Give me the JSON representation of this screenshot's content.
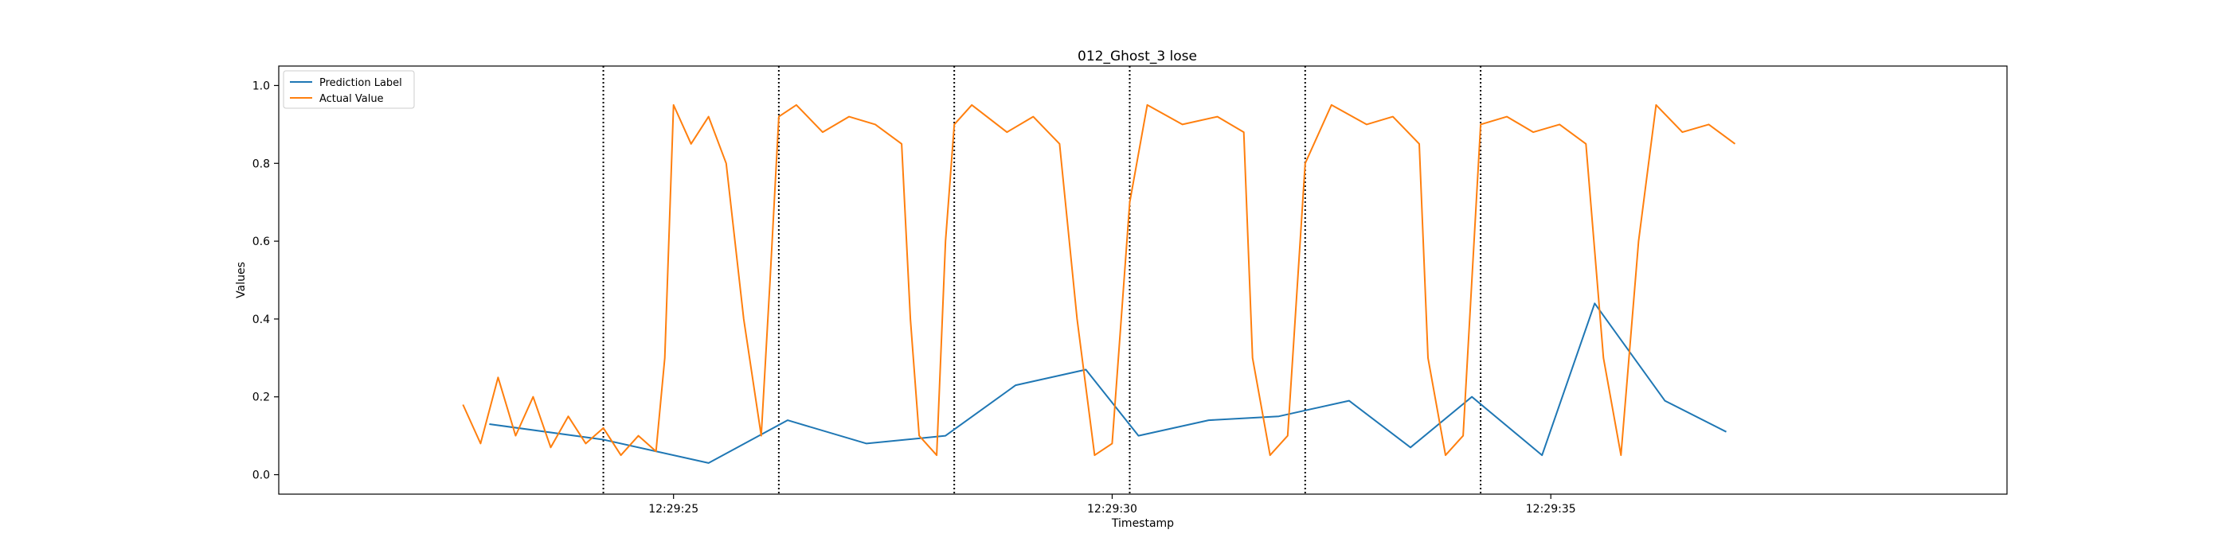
{
  "chart_data": {
    "type": "line",
    "title": "012_Ghost_3 lose",
    "xlabel": "Timestamp",
    "ylabel": "Values",
    "xlim": [
      "12:29:20.5",
      "12:29:40.2"
    ],
    "ylim": [
      -0.05,
      1.05
    ],
    "x_ticks": [
      "12:29:25",
      "12:29:30",
      "12:29:35"
    ],
    "y_ticks": [
      "0.0",
      "0.2",
      "0.4",
      "0.6",
      "0.8",
      "1.0"
    ],
    "y_tick_values": [
      0,
      0.2,
      0.4,
      0.6,
      0.8,
      1.0
    ],
    "legend_position": "upper-left",
    "grid": false,
    "vertical_markers": [
      "12:29:24.2",
      "12:29:26.2",
      "12:29:28.2",
      "12:29:30.2",
      "12:29:32.2",
      "12:29:34.2"
    ],
    "series": [
      {
        "name": "Prediction Label",
        "color": "#1f77b4",
        "x": [
          "12:29:22.9",
          "12:29:24.2",
          "12:29:25.4",
          "12:29:26.3",
          "12:29:27.2",
          "12:29:28.1",
          "12:29:28.9",
          "12:29:29.7",
          "12:29:30.3",
          "12:29:31.1",
          "12:29:31.9",
          "12:29:32.7",
          "12:29:33.4",
          "12:29:34.1",
          "12:29:34.9",
          "12:29:35.5",
          "12:29:36.3",
          "12:29:37.0"
        ],
        "y": [
          0.13,
          0.09,
          0.03,
          0.14,
          0.08,
          0.1,
          0.23,
          0.27,
          0.1,
          0.14,
          0.15,
          0.19,
          0.07,
          0.2,
          0.05,
          0.44,
          0.19,
          0.11
        ]
      },
      {
        "name": "Actual Value",
        "color": "#ff7f0e",
        "x": [
          "12:29:22.6",
          "12:29:22.8",
          "12:29:23.0",
          "12:29:23.2",
          "12:29:23.4",
          "12:29:23.6",
          "12:29:23.8",
          "12:29:24.0",
          "12:29:24.2",
          "12:29:24.4",
          "12:29:24.6",
          "12:29:24.8",
          "12:29:24.9",
          "12:29:25.0",
          "12:29:25.2",
          "12:29:25.4",
          "12:29:25.6",
          "12:29:25.8",
          "12:29:26.0",
          "12:29:26.1",
          "12:29:26.2",
          "12:29:26.4",
          "12:29:26.7",
          "12:29:27.0",
          "12:29:27.3",
          "12:29:27.6",
          "12:29:27.7",
          "12:29:27.8",
          "12:29:28.0",
          "12:29:28.1",
          "12:29:28.2",
          "12:29:28.4",
          "12:29:28.8",
          "12:29:29.1",
          "12:29:29.4",
          "12:29:29.6",
          "12:29:29.8",
          "12:29:30.0",
          "12:29:30.2",
          "12:29:30.4",
          "12:29:30.8",
          "12:29:31.2",
          "12:29:31.5",
          "12:29:31.6",
          "12:29:31.8",
          "12:29:32.0",
          "12:29:32.2",
          "12:29:32.5",
          "12:29:32.9",
          "12:29:33.2",
          "12:29:33.5",
          "12:29:33.6",
          "12:29:33.8",
          "12:29:34.0",
          "12:29:34.2",
          "12:29:34.5",
          "12:29:34.8",
          "12:29:35.1",
          "12:29:35.4",
          "12:29:35.6",
          "12:29:35.8",
          "12:29:36.0",
          "12:29:36.2",
          "12:29:36.5",
          "12:29:36.8",
          "12:29:37.1"
        ],
        "y": [
          0.18,
          0.08,
          0.25,
          0.1,
          0.2,
          0.07,
          0.15,
          0.08,
          0.12,
          0.05,
          0.1,
          0.06,
          0.3,
          0.95,
          0.85,
          0.92,
          0.8,
          0.4,
          0.1,
          0.5,
          0.92,
          0.95,
          0.88,
          0.92,
          0.9,
          0.85,
          0.4,
          0.1,
          0.05,
          0.6,
          0.9,
          0.95,
          0.88,
          0.92,
          0.85,
          0.4,
          0.05,
          0.08,
          0.7,
          0.95,
          0.9,
          0.92,
          0.88,
          0.3,
          0.05,
          0.1,
          0.8,
          0.95,
          0.9,
          0.92,
          0.85,
          0.3,
          0.05,
          0.1,
          0.9,
          0.92,
          0.88,
          0.9,
          0.85,
          0.3,
          0.05,
          0.6,
          0.95,
          0.88,
          0.9,
          0.85
        ]
      }
    ]
  }
}
